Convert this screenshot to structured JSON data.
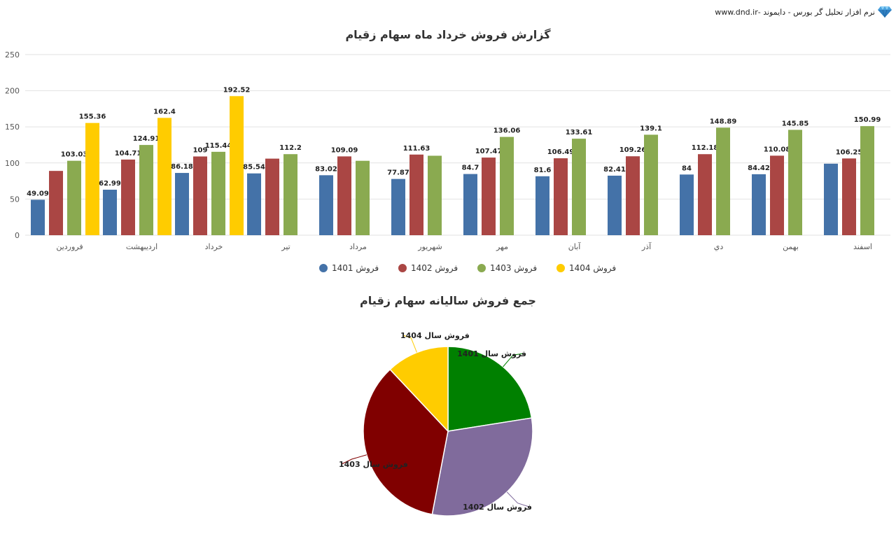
{
  "header": {
    "brand_text": "نرم افزار تحلیل گر بورس - دایموند -www.dnd.ir",
    "logo_icon": "diamond-icon"
  },
  "chart_data": [
    {
      "type": "bar",
      "title": "گزارش فروش خرداد ماه سهام زقیام",
      "categories": [
        "فروردین",
        "اردیبهشت",
        "خرداد",
        "تیر",
        "مرداد",
        "شهریور",
        "مهر",
        "آبان",
        "آذر",
        "دي",
        "بهمن",
        "اسفند"
      ],
      "y_ticks": [
        "0",
        "50",
        "100",
        "150",
        "200",
        "250"
      ],
      "ylim": [
        0,
        250
      ],
      "grid": true,
      "legend_position": "bottom",
      "series": [
        {
          "name": "فروش 1401",
          "color": "#4472a8",
          "values": [
            49.09,
            62.99,
            86.18,
            85.54,
            83.02,
            77.87,
            84.7,
            81.6,
            82.41,
            84,
            84.42,
            99
          ],
          "labels": [
            "49.09",
            "62.99",
            "86.18",
            "85.54",
            "83.02",
            "77.87",
            "84.7",
            "81.6",
            "82.41",
            "84",
            "84.42",
            ""
          ]
        },
        {
          "name": "فروش 1402",
          "color": "#aa4644",
          "values": [
            89,
            104.71,
            109,
            106,
            109.09,
            111.63,
            107.47,
            106.49,
            109.26,
            112.18,
            110.08,
            106.25
          ],
          "labels": [
            "",
            "104.71",
            "109",
            "",
            "109.09",
            "111.63",
            "107.47",
            "106.49",
            "109.26",
            "112.18",
            "110.08",
            "106.25"
          ]
        },
        {
          "name": "فروش 1403",
          "color": "#8aaa50",
          "values": [
            103.03,
            124.91,
            115.44,
            112.2,
            103,
            110,
            136.06,
            133.61,
            139.1,
            148.89,
            145.85,
            150.99
          ],
          "labels": [
            "103.03",
            "124.91",
            "115.44",
            "112.2",
            "",
            "",
            "136.06",
            "133.61",
            "139.1",
            "148.89",
            "145.85",
            "150.99"
          ]
        },
        {
          "name": "فروش 1404",
          "color": "#ffcc00",
          "values": [
            155.36,
            162.4,
            192.52,
            null,
            null,
            null,
            null,
            null,
            null,
            null,
            null,
            null
          ],
          "labels": [
            "155.36",
            "162.4",
            "192.52",
            "",
            "",
            "",
            "",
            "",
            "",
            "",
            "",
            ""
          ]
        }
      ]
    },
    {
      "type": "pie",
      "title": "جمع فروش سالیانه سهام زقیام",
      "slices": [
        {
          "label": "فروش سال 1401",
          "value": 22.5,
          "color": "#008000"
        },
        {
          "label": "فروش سال 1402",
          "value": 30.5,
          "color": "#806b9c"
        },
        {
          "label": "فروش سال 1403",
          "value": 35.0,
          "color": "#800000"
        },
        {
          "label": "فروش سال 1404",
          "value": 12.0,
          "color": "#ffcc00"
        }
      ]
    }
  ]
}
